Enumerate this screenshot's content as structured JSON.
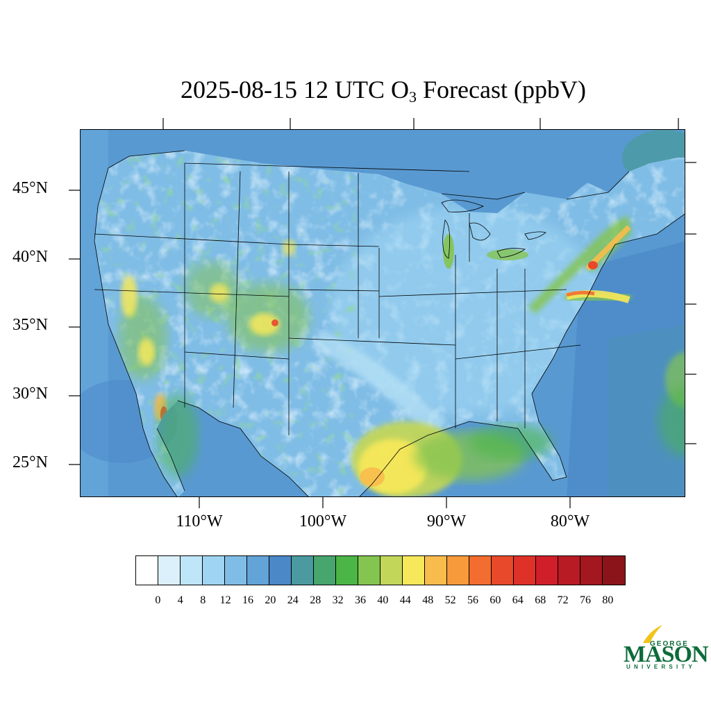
{
  "title": {
    "prefix": "2025-08-15 12 UTC O",
    "subscript": "3",
    "suffix": " Forecast (ppbV)"
  },
  "map": {
    "latitude_labels": [
      "45°N",
      "40°N",
      "35°N",
      "30°N",
      "25°N"
    ],
    "longitude_labels": [
      "110°W",
      "100°W",
      "90°W",
      "80°W"
    ],
    "background_color": "#5a9fd4",
    "land_color": "#a7d8f0",
    "line_color": "#000000"
  },
  "colorbar": {
    "colors": [
      "#ffffff",
      "#dcf0fb",
      "#bfe6f8",
      "#9fd5f3",
      "#80bde6",
      "#62a3d8",
      "#4a88c7",
      "#4a9aa0",
      "#47a56e",
      "#4bb546",
      "#84c450",
      "#c2d65a",
      "#f6e85a",
      "#f8bc4c",
      "#f79a3c",
      "#f26d2f",
      "#e8492b",
      "#de3128",
      "#d01f2a",
      "#b81b23",
      "#a3171e",
      "#8b141a"
    ],
    "tick_labels": [
      "0",
      "4",
      "8",
      "12",
      "16",
      "20",
      "24",
      "28",
      "32",
      "36",
      "40",
      "44",
      "48",
      "52",
      "56",
      "60",
      "64",
      "68",
      "72",
      "76",
      "80"
    ]
  },
  "logo": {
    "line1": "GEORGE",
    "line2": "MASON",
    "line3": "UNIVERSITY"
  }
}
